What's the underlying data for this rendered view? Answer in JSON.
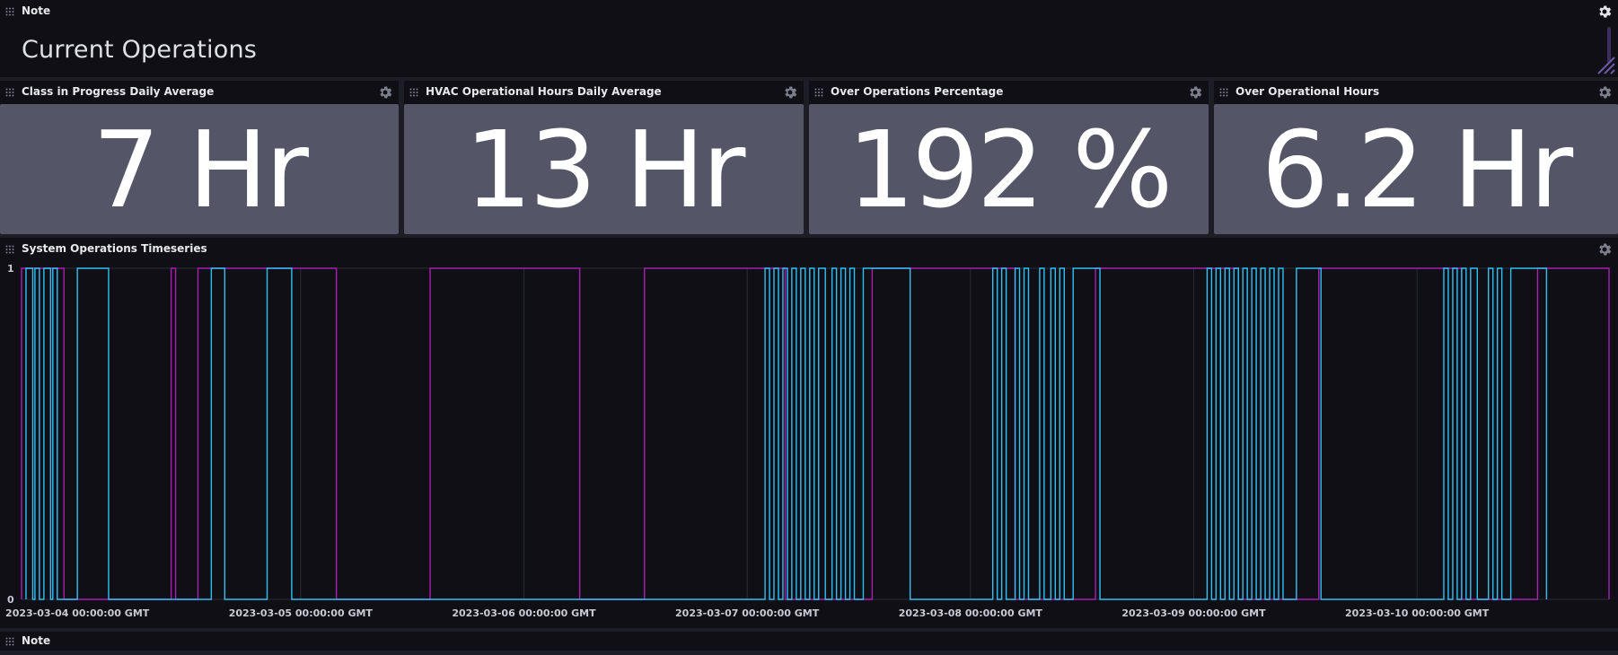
{
  "note_top": {
    "title": "Note",
    "heading": "Current Operations"
  },
  "stats": [
    {
      "title": "Class in Progress Daily Average",
      "value": "7 Hr"
    },
    {
      "title": "HVAC Operational Hours Daily Average",
      "value": "13 Hr"
    },
    {
      "title": "Over Operations Percentage",
      "value": "192 %"
    },
    {
      "title": "Over Operational Hours",
      "value": "6.2 Hr"
    }
  ],
  "timeseries": {
    "title": "System Operations Timeseries"
  },
  "note_bottom": {
    "title": "Note"
  },
  "colors": {
    "series_a": "#a91fb1",
    "series_b": "#31c0f6",
    "stat_bg": "#545667"
  },
  "chart_data": {
    "type": "line",
    "title": "",
    "ylim": [
      0,
      1
    ],
    "y_ticks": [
      "0",
      "1"
    ],
    "x_ticks": [
      "2023-03-04 00:00:00 GMT",
      "2023-03-05 00:00:00 GMT",
      "2023-03-06 00:00:00 GMT",
      "2023-03-07 00:00:00 GMT",
      "2023-03-08 00:00:00 GMT",
      "2023-03-09 00:00:00 GMT",
      "2023-03-10 00:00:00 GMT"
    ],
    "x_range_days": [
      -0.25,
      6.86
    ],
    "grid": true,
    "legend": "none",
    "series": [
      {
        "color": "#a91fb1",
        "step_intervals_days": [
          [
            -0.25,
            -0.06
          ],
          [
            0.42,
            0.44
          ],
          [
            0.54,
            1.16
          ],
          [
            1.58,
            2.25
          ],
          [
            2.54,
            3.17
          ],
          [
            3.56,
            4.2
          ],
          [
            4.56,
            5.2
          ],
          [
            5.56,
            6.2
          ],
          [
            6.54,
            6.86
          ]
        ]
      },
      {
        "color": "#31c0f6",
        "step_intervals_days": [
          [
            -0.23,
            -0.2
          ],
          [
            -0.19,
            -0.17
          ],
          [
            -0.15,
            -0.12
          ],
          [
            -0.11,
            -0.09
          ],
          [
            0.0,
            0.14
          ],
          [
            0.6,
            0.66
          ],
          [
            0.85,
            0.96
          ],
          [
            3.08,
            3.1
          ],
          [
            3.12,
            3.14
          ],
          [
            3.16,
            3.18
          ],
          [
            3.2,
            3.22
          ],
          [
            3.24,
            3.26
          ],
          [
            3.28,
            3.3
          ],
          [
            3.32,
            3.35
          ],
          [
            3.38,
            3.4
          ],
          [
            3.42,
            3.44
          ],
          [
            3.46,
            3.48
          ],
          [
            3.52,
            3.73
          ],
          [
            4.1,
            4.12
          ],
          [
            4.14,
            4.16
          ],
          [
            4.2,
            4.22
          ],
          [
            4.24,
            4.26
          ],
          [
            4.31,
            4.33
          ],
          [
            4.36,
            4.38
          ],
          [
            4.4,
            4.42
          ],
          [
            4.46,
            4.58
          ],
          [
            5.06,
            5.08
          ],
          [
            5.1,
            5.12
          ],
          [
            5.14,
            5.16
          ],
          [
            5.18,
            5.2
          ],
          [
            5.22,
            5.24
          ],
          [
            5.26,
            5.28
          ],
          [
            5.3,
            5.32
          ],
          [
            5.34,
            5.36
          ],
          [
            5.38,
            5.4
          ],
          [
            5.46,
            5.57
          ],
          [
            6.12,
            6.14
          ],
          [
            6.16,
            6.18
          ],
          [
            6.2,
            6.22
          ],
          [
            6.24,
            6.27
          ],
          [
            6.32,
            6.34
          ],
          [
            6.36,
            6.38
          ],
          [
            6.42,
            6.58
          ]
        ]
      }
    ]
  }
}
